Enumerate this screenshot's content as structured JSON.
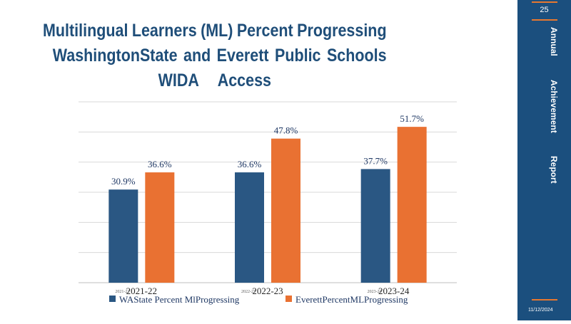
{
  "title_lines": [
    [
      "Multilingual",
      "Learners",
      "(ML)",
      "Percent",
      "Progressing"
    ],
    [
      "WashingtonState",
      "and",
      "Everett",
      "Public",
      "Schools"
    ],
    [
      "WIDA",
      "Access"
    ]
  ],
  "sidebar": {
    "page_number": "25",
    "words": [
      "Annual",
      "Achievement",
      "Report"
    ],
    "date": "11/12/2024"
  },
  "colors": {
    "sidebar_bg": "#1b4f7e",
    "accent": "#e8782f",
    "title": "#1f4e79",
    "wa": "#2a5783",
    "everett": "#e97132"
  },
  "chart_data": {
    "type": "bar",
    "categories": [
      "2021-22",
      "2022-23",
      "2023-24"
    ],
    "small_category_labels": [
      "2021-22",
      "2022-23",
      "2023-24"
    ],
    "series": [
      {
        "name": "WAState Percent MlProgressing",
        "values": [
          30.9,
          36.6,
          37.7
        ],
        "labels": [
          "30.9%",
          "36.6%",
          "37.7%"
        ],
        "color": "#2a5783"
      },
      {
        "name": "EverettPercentMLProgressing",
        "values": [
          36.6,
          47.8,
          51.7
        ],
        "labels": [
          "36.6%",
          "47.8%",
          "51.7%"
        ],
        "color": "#e97132"
      }
    ],
    "ylim": [
      0,
      60
    ],
    "grid": true,
    "legend_position": "bottom"
  }
}
